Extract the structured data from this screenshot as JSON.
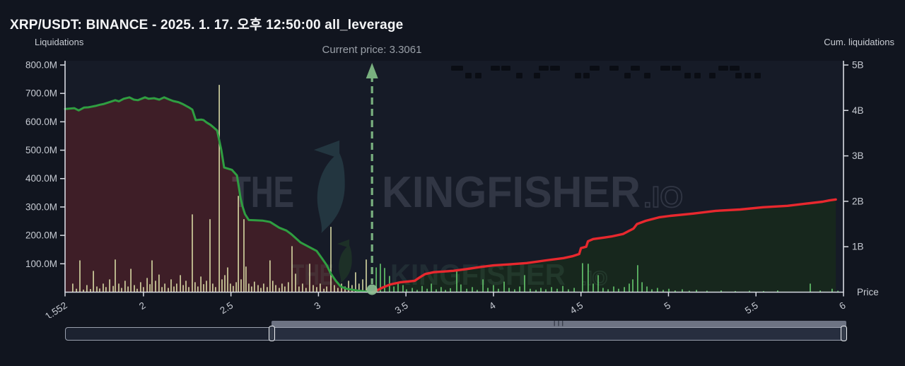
{
  "header": {
    "title": "XRP/USDT: BINANCE - 2025. 1. 17. 오후 12:50:00 all_leverage"
  },
  "annotations": {
    "current_price_label": "Current price: 3.3061",
    "current_price": 3.3061
  },
  "axes": {
    "left": {
      "label": "Liquidations",
      "tick_labels": [
        "800.0M",
        "700.0M",
        "600.0M",
        "500.0M",
        "400.0M",
        "300.0M",
        "200.0M",
        "100.0M"
      ],
      "tick_values_m": [
        800,
        700,
        600,
        500,
        400,
        300,
        200,
        100
      ]
    },
    "right": {
      "label": "Cum. liquidations",
      "tick_labels": [
        "5B",
        "4B",
        "3B",
        "2B",
        "1B"
      ],
      "tick_values_b": [
        5,
        4,
        3,
        2,
        1
      ]
    },
    "x": {
      "title": "Price",
      "tick_labels": [
        "1.552",
        "2",
        "2.5",
        "3",
        "3.5",
        "4",
        "4.5",
        "5",
        "5.5",
        "6"
      ],
      "tick_values": [
        1.552,
        2,
        2.5,
        3,
        3.5,
        4,
        4.5,
        5,
        5.5,
        6
      ],
      "range": [
        1.552,
        6
      ]
    }
  },
  "watermark": {
    "upper": {
      "word1": "THE",
      "word2": "KINGFISHER",
      "suffix": ".IO"
    },
    "lower": {
      "word1": "THE",
      "word2": "KINGFISHER",
      "suffix": ".IO"
    }
  },
  "rangeslider": {
    "grip_glyph": "|||"
  },
  "colors": {
    "background": "#11151f",
    "plot_bg": "#161b27",
    "green_line": "#2f9e41",
    "red_line": "#e8282e",
    "left_fill": "#3e1e27",
    "right_fill": "#17271d",
    "khaki_bar": "#d8d9a4",
    "green_bar": "#66c96e",
    "arrow": "#79b07f",
    "dot": "#8dbf94",
    "axis": "#d7dae2",
    "tick_text": "#c6cad2",
    "marker": "#0a0d14",
    "watermark_upper": "rgba(190,200,225,0.16)",
    "watermark_lower": "rgba(140,210,170,0.10)",
    "bird": "#233640",
    "bird_lower": "#1d3027"
  },
  "chart_data": {
    "type": "line+bar",
    "title": "XRP/USDT: BINANCE - 2025. 1. 17. 오후 12:50:00 all_leverage",
    "xlabel": "Price",
    "x_range": [
      1.552,
      6
    ],
    "current_price": 3.3061,
    "y_left": {
      "label": "Liquidations",
      "unit": "USD millions",
      "range_m": [
        0,
        810
      ]
    },
    "y_right": {
      "label": "Cum. liquidations",
      "unit": "USD billions",
      "range_b": [
        0,
        5.06
      ]
    },
    "grid": false,
    "series": [
      {
        "name": "liquidation-leverage-profile",
        "type": "line",
        "axis": "left",
        "unit": "M",
        "points": [
          [
            1.552,
            645
          ],
          [
            1.605,
            648
          ],
          [
            1.63,
            640
          ],
          [
            1.66,
            650
          ],
          [
            1.685,
            651
          ],
          [
            1.726,
            656
          ],
          [
            1.75,
            660
          ],
          [
            1.774,
            663
          ],
          [
            1.81,
            670
          ],
          [
            1.839,
            676
          ],
          [
            1.86,
            672
          ],
          [
            1.887,
            681
          ],
          [
            1.92,
            686
          ],
          [
            1.945,
            678
          ],
          [
            1.968,
            676
          ],
          [
            2.009,
            686
          ],
          [
            2.03,
            681
          ],
          [
            2.061,
            683
          ],
          [
            2.09,
            678
          ],
          [
            2.118,
            686
          ],
          [
            2.145,
            679
          ],
          [
            2.17,
            673
          ],
          [
            2.2,
            669
          ],
          [
            2.223,
            663
          ],
          [
            2.259,
            651
          ],
          [
            2.279,
            643
          ],
          [
            2.299,
            606
          ],
          [
            2.33,
            608
          ],
          [
            2.344,
            606
          ],
          [
            2.36,
            598
          ],
          [
            2.384,
            589
          ],
          [
            2.405,
            578
          ],
          [
            2.421,
            569
          ],
          [
            2.445,
            501
          ],
          [
            2.461,
            439
          ],
          [
            2.505,
            431
          ],
          [
            2.534,
            411
          ],
          [
            2.545,
            370
          ],
          [
            2.555,
            330
          ],
          [
            2.566,
            302
          ],
          [
            2.58,
            275
          ],
          [
            2.602,
            254
          ],
          [
            2.64,
            253
          ],
          [
            2.68,
            252
          ],
          [
            2.724,
            247
          ],
          [
            2.776,
            227
          ],
          [
            2.817,
            217
          ],
          [
            2.845,
            204
          ],
          [
            2.898,
            175
          ],
          [
            2.938,
            162
          ],
          [
            2.99,
            145
          ],
          [
            3.019,
            120
          ],
          [
            3.047,
            95
          ],
          [
            3.071,
            65
          ],
          [
            3.099,
            40
          ],
          [
            3.127,
            20
          ],
          [
            3.16,
            12
          ],
          [
            3.22,
            6
          ],
          [
            3.26,
            3
          ],
          [
            3.3061,
            0
          ]
        ]
      },
      {
        "name": "cumulative-liquidations",
        "type": "line",
        "axis": "right",
        "unit": "B",
        "points": [
          [
            3.3061,
            0
          ],
          [
            3.33,
            0.03
          ],
          [
            3.36,
            0.09
          ],
          [
            3.41,
            0.17
          ],
          [
            3.47,
            0.22
          ],
          [
            3.55,
            0.25
          ],
          [
            3.58,
            0.33
          ],
          [
            3.61,
            0.4
          ],
          [
            3.66,
            0.44
          ],
          [
            3.77,
            0.47
          ],
          [
            3.85,
            0.51
          ],
          [
            3.92,
            0.55
          ],
          [
            4.0,
            0.59
          ],
          [
            4.08,
            0.61
          ],
          [
            4.19,
            0.64
          ],
          [
            4.3,
            0.7
          ],
          [
            4.4,
            0.75
          ],
          [
            4.45,
            0.79
          ],
          [
            4.49,
            0.84
          ],
          [
            4.5,
            0.97
          ],
          [
            4.53,
            1.0
          ],
          [
            4.54,
            1.12
          ],
          [
            4.57,
            1.17
          ],
          [
            4.63,
            1.2
          ],
          [
            4.68,
            1.23
          ],
          [
            4.74,
            1.28
          ],
          [
            4.8,
            1.4
          ],
          [
            4.82,
            1.5
          ],
          [
            4.87,
            1.57
          ],
          [
            4.95,
            1.65
          ],
          [
            5.01,
            1.68
          ],
          [
            5.14,
            1.73
          ],
          [
            5.27,
            1.79
          ],
          [
            5.41,
            1.82
          ],
          [
            5.54,
            1.87
          ],
          [
            5.68,
            1.9
          ],
          [
            5.79,
            1.95
          ],
          [
            5.88,
            1.99
          ],
          [
            5.92,
            2.02
          ],
          [
            5.956,
            2.04
          ]
        ]
      },
      {
        "name": "liquidation-bars-below-price",
        "type": "bar",
        "axis": "left",
        "unit": "M",
        "points": [
          [
            1.596,
            30
          ],
          [
            1.617,
            12
          ],
          [
            1.637,
            112
          ],
          [
            1.657,
            9
          ],
          [
            1.677,
            25
          ],
          [
            1.697,
            11
          ],
          [
            1.714,
            75
          ],
          [
            1.734,
            20
          ],
          [
            1.75,
            13
          ],
          [
            1.77,
            30
          ],
          [
            1.786,
            18
          ],
          [
            1.807,
            45
          ],
          [
            1.827,
            22
          ],
          [
            1.839,
            115
          ],
          [
            1.859,
            30
          ],
          [
            1.875,
            15
          ],
          [
            1.895,
            40
          ],
          [
            1.912,
            20
          ],
          [
            1.928,
            82
          ],
          [
            1.948,
            25
          ],
          [
            1.964,
            12
          ],
          [
            1.984,
            35
          ],
          [
            2.0,
            18
          ],
          [
            2.021,
            50
          ],
          [
            2.037,
            28
          ],
          [
            2.049,
            112
          ],
          [
            2.069,
            40
          ],
          [
            2.089,
            62
          ],
          [
            2.106,
            18
          ],
          [
            2.122,
            30
          ],
          [
            2.142,
            15
          ],
          [
            2.158,
            45
          ],
          [
            2.174,
            20
          ],
          [
            2.19,
            30
          ],
          [
            2.211,
            60
          ],
          [
            2.227,
            25
          ],
          [
            2.243,
            40
          ],
          [
            2.259,
            18
          ],
          [
            2.279,
            274
          ],
          [
            2.295,
            35
          ],
          [
            2.311,
            20
          ],
          [
            2.328,
            55
          ],
          [
            2.344,
            28
          ],
          [
            2.36,
            40
          ],
          [
            2.38,
            257
          ],
          [
            2.396,
            30
          ],
          [
            2.412,
            18
          ],
          [
            2.433,
            730
          ],
          [
            2.449,
            45
          ],
          [
            2.465,
            60
          ],
          [
            2.481,
            87
          ],
          [
            2.497,
            30
          ],
          [
            2.513,
            22
          ],
          [
            2.53,
            35
          ],
          [
            2.542,
            339
          ],
          [
            2.558,
            45
          ],
          [
            2.574,
            257
          ],
          [
            2.586,
            90
          ],
          [
            2.602,
            30
          ],
          [
            2.618,
            20
          ],
          [
            2.634,
            37
          ],
          [
            2.655,
            25
          ],
          [
            2.671,
            15
          ],
          [
            2.687,
            30
          ],
          [
            2.707,
            18
          ],
          [
            2.723,
            112
          ],
          [
            2.739,
            40
          ],
          [
            2.756,
            25
          ],
          [
            2.776,
            15
          ],
          [
            2.792,
            30
          ],
          [
            2.808,
            20
          ],
          [
            2.828,
            35
          ],
          [
            2.849,
            162
          ],
          [
            2.869,
            65
          ],
          [
            2.889,
            20
          ],
          [
            2.909,
            30
          ],
          [
            2.929,
            15
          ],
          [
            2.95,
            100
          ],
          [
            2.97,
            25
          ],
          [
            2.99,
            18
          ],
          [
            3.01,
            30
          ],
          [
            3.031,
            12
          ],
          [
            3.047,
            20
          ],
          [
            3.071,
            230
          ],
          [
            3.091,
            25
          ],
          [
            3.111,
            15
          ],
          [
            3.132,
            30
          ],
          [
            3.152,
            20
          ],
          [
            3.172,
            40
          ],
          [
            3.192,
            25
          ],
          [
            3.212,
            70
          ],
          [
            3.232,
            30
          ],
          [
            3.253,
            45
          ],
          [
            3.273,
            115
          ]
        ]
      },
      {
        "name": "liquidation-bars-above-price",
        "type": "bar",
        "axis": "left",
        "unit": "M",
        "points": [
          [
            3.33,
            87
          ],
          [
            3.354,
            100
          ],
          [
            3.378,
            85
          ],
          [
            3.406,
            57
          ],
          [
            3.431,
            20
          ],
          [
            3.455,
            35
          ],
          [
            3.483,
            25
          ],
          [
            3.503,
            10
          ],
          [
            3.536,
            15
          ],
          [
            3.564,
            8
          ],
          [
            3.592,
            22
          ],
          [
            3.621,
            12
          ],
          [
            3.645,
            30
          ],
          [
            3.673,
            10
          ],
          [
            3.701,
            18
          ],
          [
            3.726,
            8
          ],
          [
            3.754,
            14
          ],
          [
            3.79,
            77
          ],
          [
            3.814,
            27
          ],
          [
            3.847,
            12
          ],
          [
            3.879,
            18
          ],
          [
            3.907,
            8
          ],
          [
            3.94,
            45
          ],
          [
            3.968,
            15
          ],
          [
            4.0,
            25
          ],
          [
            4.028,
            12
          ],
          [
            4.061,
            37
          ],
          [
            4.089,
            15
          ],
          [
            4.121,
            10
          ],
          [
            4.15,
            20
          ],
          [
            4.178,
            60
          ],
          [
            4.21,
            12
          ],
          [
            4.243,
            8
          ],
          [
            4.271,
            15
          ],
          [
            4.299,
            10
          ],
          [
            4.332,
            18
          ],
          [
            4.364,
            12
          ],
          [
            4.396,
            22
          ],
          [
            4.428,
            10
          ],
          [
            4.461,
            15
          ],
          [
            4.509,
            102
          ],
          [
            4.541,
            100
          ],
          [
            4.57,
            30
          ],
          [
            4.598,
            60
          ],
          [
            4.626,
            15
          ],
          [
            4.655,
            10
          ],
          [
            4.687,
            20
          ],
          [
            4.715,
            12
          ],
          [
            4.748,
            18
          ],
          [
            4.776,
            30
          ],
          [
            4.796,
            45
          ],
          [
            4.824,
            95
          ],
          [
            4.849,
            35
          ],
          [
            4.877,
            20
          ],
          [
            4.905,
            10
          ],
          [
            4.937,
            15
          ],
          [
            4.97,
            8
          ],
          [
            5.002,
            12
          ],
          [
            5.038,
            6
          ],
          [
            5.079,
            10
          ],
          [
            5.119,
            5
          ],
          [
            5.16,
            8
          ],
          [
            5.22,
            5
          ],
          [
            5.301,
            6
          ],
          [
            5.382,
            4
          ],
          [
            5.463,
            5
          ],
          [
            5.543,
            4
          ],
          [
            5.624,
            6
          ],
          [
            5.81,
            30
          ],
          [
            5.867,
            6
          ],
          [
            5.935,
            12
          ],
          [
            5.968,
            5
          ]
        ]
      }
    ],
    "decor_markers": {
      "row1": [
        [
          638,
          17
        ],
        [
          694,
          13
        ],
        [
          709,
          13
        ],
        [
          762,
          14
        ],
        [
          778,
          14
        ],
        [
          834,
          14
        ],
        [
          862,
          13
        ],
        [
          892,
          13
        ],
        [
          934,
          14
        ],
        [
          950,
          13
        ],
        [
          1016,
          14
        ],
        [
          1032,
          14
        ]
      ],
      "row2": [
        658,
        672,
        730,
        755,
        813,
        825,
        883,
        911,
        968,
        982,
        1003,
        1040,
        1053,
        1067
      ]
    }
  }
}
